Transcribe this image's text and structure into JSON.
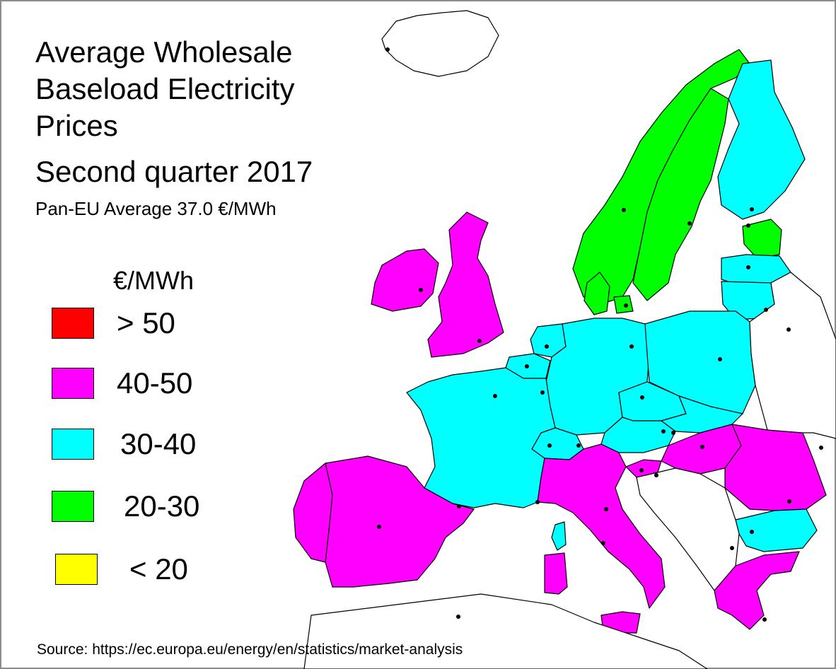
{
  "title_lines": [
    "Average Wholesale",
    "Baseload Electricity",
    "Prices"
  ],
  "subtitle": "Second quarter 2017",
  "pan_eu_average": "Pan-EU Average 37.0 €/MWh",
  "legend": {
    "unit": "€/MWh",
    "items": [
      {
        "label": "> 50",
        "color": "#ff0000"
      },
      {
        "label": "40-50",
        "color": "#ff00ff"
      },
      {
        "label": "30-40",
        "color": "#00ffff"
      },
      {
        "label": "20-30",
        "color": "#00ff00"
      },
      {
        "label": "< 20",
        "color": "#ffff00"
      }
    ]
  },
  "source": "Source: https://ec.europa.eu/energy/en/statistics/market-analysis",
  "map_colors": {
    "price_40_50": "#ff00ff",
    "price_30_40": "#00ffff",
    "price_20_30": "#00ff00",
    "no_data": "#ffffff",
    "border": "#000000"
  }
}
